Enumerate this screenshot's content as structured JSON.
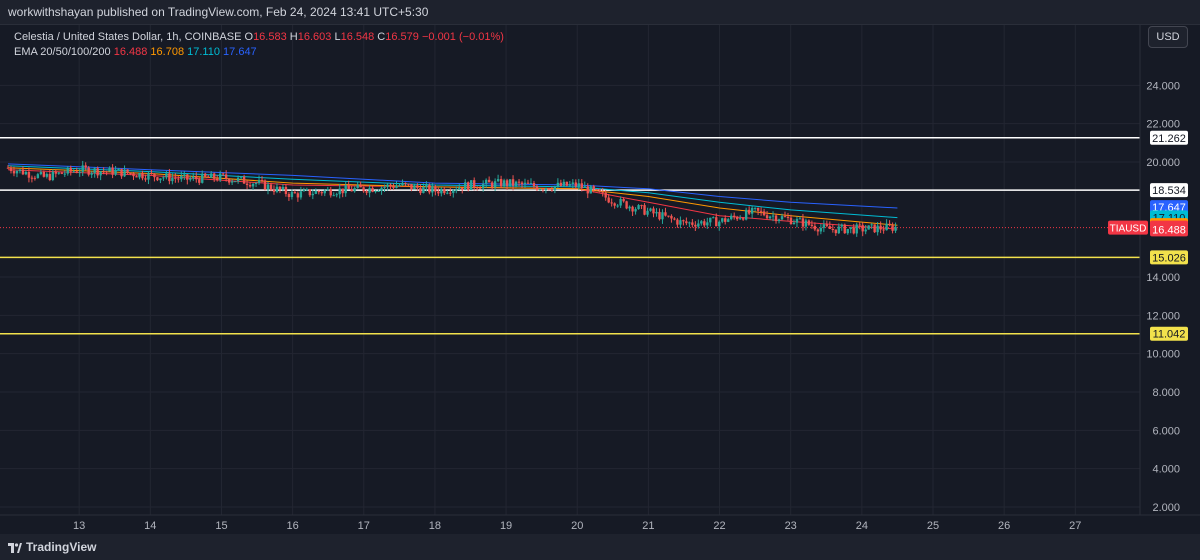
{
  "header": {
    "published_text": "workwithshayan published on TradingView.com, Feb 24, 2024 13:41 UTC+5:30"
  },
  "legend": {
    "symbol": "Celestia / United States Dollar, 1h, COINBASE",
    "ohlc": [
      {
        "key": "O",
        "value": "16.583"
      },
      {
        "key": "H",
        "value": "16.603"
      },
      {
        "key": "L",
        "value": "16.548"
      },
      {
        "key": "C",
        "value": "16.579"
      }
    ],
    "change": "−0.001 (−0.01%)",
    "ema_label": "EMA 20/50/100/200",
    "ema_values": [
      "16.488",
      "16.708",
      "17.110",
      "17.647"
    ]
  },
  "currency_button": "USD",
  "footer": {
    "brand": "TradingView"
  },
  "colors": {
    "ema20": "#f23645",
    "ema50": "#ff9800",
    "ema100": "#00bcd4",
    "ema200": "#2962ff",
    "up": "#26a69a",
    "down": "#ef5350",
    "resistance": "#ffffff",
    "support": "#f2e14c"
  },
  "chart_data": {
    "type": "candlestick",
    "symbol_tag": "TIAUSD",
    "y_ticks": [
      "24.000",
      "22.000",
      "20.000",
      "14.000",
      "12.000",
      "10.000",
      "8.000",
      "6.000",
      "4.000",
      "2.000"
    ],
    "x_ticks": [
      "13",
      "14",
      "15",
      "16",
      "17",
      "18",
      "19",
      "20",
      "21",
      "22",
      "23",
      "24",
      "25",
      "26",
      "27"
    ],
    "ylim": [
      2,
      26
    ],
    "horizontal_lines": [
      {
        "value": 21.262,
        "color": "#ffffff",
        "label": "21.262"
      },
      {
        "value": 18.534,
        "color": "#ffffff",
        "label": "18.534"
      },
      {
        "value": 15.026,
        "color": "#f2e14c",
        "label": "15.026"
      },
      {
        "value": 11.042,
        "color": "#f2e14c",
        "label": "11.042"
      }
    ],
    "price_tags": [
      {
        "label": "17.647",
        "value": 17.647,
        "color": "#2962ff",
        "text_color": "#ffffff"
      },
      {
        "label": "17.110",
        "value": 17.11,
        "color": "#00bcd4",
        "text_color": "#131722"
      },
      {
        "label": "16.708",
        "value": 16.708,
        "color": "#ff9800",
        "text_color": "#131722"
      },
      {
        "label": "16.579",
        "value": 16.579,
        "color": "#f23645",
        "text_color": "#ffffff"
      },
      {
        "label": "16.488",
        "value": 16.488,
        "color": "#f23645",
        "text_color": "#ffffff"
      }
    ],
    "last_price": 16.579,
    "price_path": [
      [
        12.0,
        19.7
      ],
      [
        12.5,
        19.2
      ],
      [
        13.0,
        19.6
      ],
      [
        13.5,
        19.5
      ],
      [
        14.0,
        19.3
      ],
      [
        14.5,
        19.1
      ],
      [
        15.0,
        19.2
      ],
      [
        15.5,
        18.9
      ],
      [
        16.0,
        18.3
      ],
      [
        16.5,
        18.5
      ],
      [
        17.0,
        18.6
      ],
      [
        17.5,
        18.8
      ],
      [
        18.0,
        18.5
      ],
      [
        18.5,
        18.8
      ],
      [
        19.0,
        18.9
      ],
      [
        19.5,
        18.7
      ],
      [
        20.0,
        18.8
      ],
      [
        20.5,
        18.0
      ],
      [
        21.0,
        17.4
      ],
      [
        21.5,
        16.8
      ],
      [
        22.0,
        16.9
      ],
      [
        22.5,
        17.4
      ],
      [
        23.0,
        17.0
      ],
      [
        23.5,
        16.5
      ],
      [
        24.0,
        16.5
      ],
      [
        24.5,
        16.6
      ]
    ],
    "ema_series": [
      {
        "period": 20,
        "color": "#f23645",
        "points": [
          [
            12.0,
            19.6
          ],
          [
            14,
            19.3
          ],
          [
            16,
            18.8
          ],
          [
            18,
            18.7
          ],
          [
            20,
            18.6
          ],
          [
            21,
            17.9
          ],
          [
            22,
            17.2
          ],
          [
            23,
            16.9
          ],
          [
            24.5,
            16.5
          ]
        ]
      },
      {
        "period": 50,
        "color": "#ff9800",
        "points": [
          [
            12.0,
            19.7
          ],
          [
            14,
            19.4
          ],
          [
            16,
            18.9
          ],
          [
            18,
            18.7
          ],
          [
            20,
            18.6
          ],
          [
            21,
            18.2
          ],
          [
            22,
            17.6
          ],
          [
            23,
            17.2
          ],
          [
            24.5,
            16.7
          ]
        ]
      },
      {
        "period": 100,
        "color": "#00bcd4",
        "points": [
          [
            12.0,
            19.8
          ],
          [
            14,
            19.5
          ],
          [
            16,
            19.1
          ],
          [
            18,
            18.8
          ],
          [
            20,
            18.7
          ],
          [
            21,
            18.4
          ],
          [
            22,
            17.9
          ],
          [
            23,
            17.5
          ],
          [
            24.5,
            17.1
          ]
        ]
      },
      {
        "period": 200,
        "color": "#2962ff",
        "points": [
          [
            12.0,
            19.9
          ],
          [
            14,
            19.6
          ],
          [
            16,
            19.3
          ],
          [
            18,
            18.9
          ],
          [
            20,
            18.8
          ],
          [
            21,
            18.6
          ],
          [
            22,
            18.2
          ],
          [
            23,
            17.9
          ],
          [
            24.5,
            17.6
          ]
        ]
      }
    ]
  }
}
